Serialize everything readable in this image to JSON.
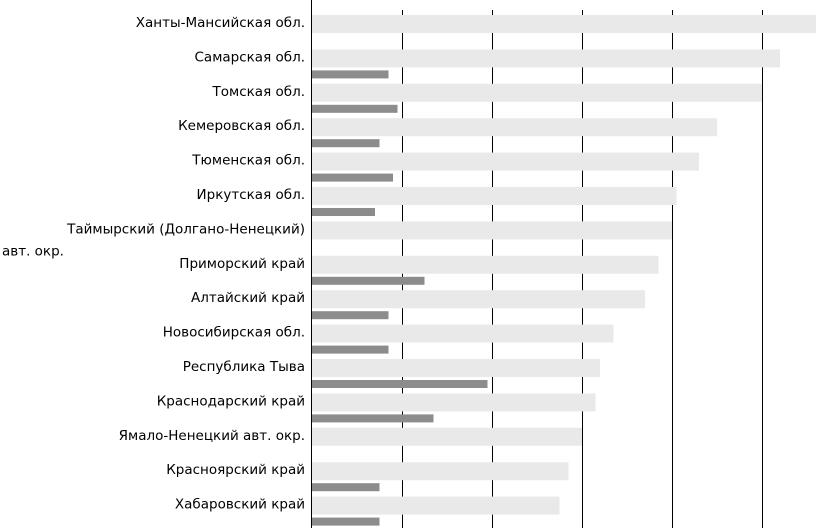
{
  "chart_data": {
    "type": "bar",
    "categories": [
      "Ханты-Мансийская обл.",
      "Самарская обл.",
      "Томская обл.",
      "Кемеровская обл.",
      "Тюменская обл.",
      "Иркутская обл.",
      "Таймырский (Долгано-Ненецкий) авт. окр.",
      "Приморский край",
      "Алтайский край",
      "Новосибирская обл.",
      "Республика Тыва",
      "Краснодарский край",
      "Ямало-Ненецкий авт. окр.",
      "Красноярский край",
      "Хабаровский край"
    ],
    "category_lines": [
      [
        "Ханты-Мансийская обл."
      ],
      [
        "Самарская обл."
      ],
      [
        "Томская обл."
      ],
      [
        "Кемеровская обл."
      ],
      [
        "Тюменская обл."
      ],
      [
        "Иркутская обл."
      ],
      [
        "Таймырский (Долгано-Ненецкий)",
        "авт. окр."
      ],
      [
        "Приморский край"
      ],
      [
        "Алтайский край"
      ],
      [
        "Новосибирская обл."
      ],
      [
        "Республика Тыва"
      ],
      [
        "Краснодарский край"
      ],
      [
        "Ямало-Ненецкий авт. окр."
      ],
      [
        "Красноярский край"
      ],
      [
        "Хабаровский край"
      ]
    ],
    "series": [
      {
        "color": "#e9e9e9",
        "values": [
          5.6,
          5.2,
          5.0,
          4.5,
          4.3,
          4.05,
          4.0,
          3.85,
          3.7,
          3.35,
          3.2,
          3.15,
          3.0,
          2.85,
          2.75
        ]
      },
      {
        "color": "#8c8c8c",
        "values": [
          null,
          0.85,
          0.95,
          0.75,
          0.9,
          0.7,
          null,
          1.25,
          0.85,
          0.85,
          1.95,
          1.35,
          null,
          0.75,
          0.75
        ]
      }
    ],
    "xlim": [
      0,
      5.6
    ],
    "gridlines": [
      1,
      2,
      3,
      4,
      5
    ],
    "grid": "vertical",
    "legend": "none"
  }
}
